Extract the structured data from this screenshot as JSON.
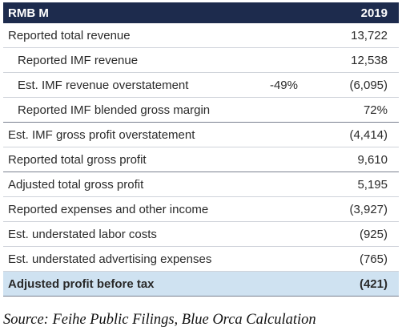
{
  "table": {
    "header": {
      "label": "RMB M",
      "year": "2019"
    },
    "rows": [
      {
        "label": "Reported total revenue",
        "pct": "",
        "value": "13,722"
      },
      {
        "label": "Reported IMF revenue",
        "pct": "",
        "value": "12,538"
      },
      {
        "label": "Est. IMF revenue overstatement",
        "pct": "-49%",
        "value": "(6,095)"
      },
      {
        "label": "Reported IMF blended gross margin",
        "pct": "",
        "value": "72%"
      },
      {
        "label": "Est. IMF gross profit overstatement",
        "pct": "",
        "value": "(4,414)"
      },
      {
        "label": "Reported total gross profit",
        "pct": "",
        "value": "9,610"
      },
      {
        "label": "Adjusted total gross profit",
        "pct": "",
        "value": "5,195"
      },
      {
        "label": "Reported expenses and other income",
        "pct": "",
        "value": "(3,927)"
      },
      {
        "label": "Est. understated labor costs",
        "pct": "",
        "value": "(925)"
      },
      {
        "label": "Est. understated advertising expenses",
        "pct": "",
        "value": "(765)"
      },
      {
        "label": "Adjusted profit before tax",
        "pct": "",
        "value": "(421)"
      }
    ]
  },
  "source": "Source: Feihe Public Filings, Blue Orca Calculation"
}
